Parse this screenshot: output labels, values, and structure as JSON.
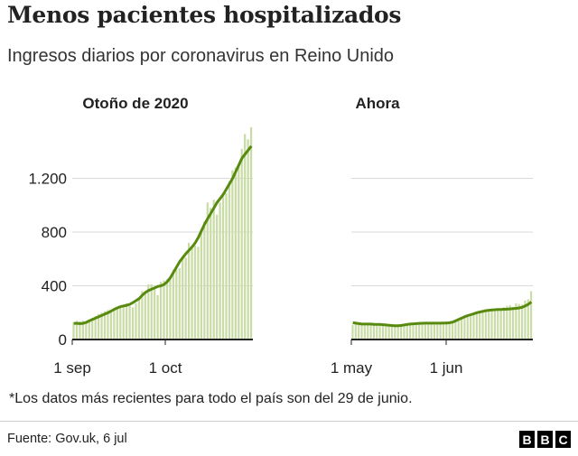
{
  "title": "Menos pacientes hospitalizados",
  "subtitle": "Ingresos diarios por coronavirus en Reino Unido",
  "footnote": "*Los datos más recientes para todo el país son del 29 de junio.",
  "source": "Fuente: Gov.uk, 6 jul",
  "logo": "BBC",
  "colors": {
    "bar": "#c9dca6",
    "line": "#588a10",
    "grid": "#d9d9d9",
    "axis": "#222222"
  },
  "chart_data": [
    {
      "type": "bar",
      "title": "Otoño de 2020",
      "x_start": "1 sep",
      "x_end": "28 oct",
      "xtick_labels": [
        "1 sep",
        "1 oct"
      ],
      "ytick_labels": [
        "0",
        "400",
        "800",
        "1.200"
      ],
      "yticks": [
        0,
        400,
        800,
        1200
      ],
      "ylim": [
        0,
        1600
      ],
      "grid": true,
      "values": [
        130,
        140,
        135,
        140,
        130,
        150,
        160,
        175,
        190,
        200,
        210,
        220,
        200,
        230,
        240,
        250,
        260,
        270,
        250,
        240,
        270,
        300,
        360,
        340,
        410,
        410,
        380,
        330,
        430,
        440,
        450,
        460,
        520,
        520,
        530,
        620,
        610,
        720,
        680,
        700,
        690,
        820,
        880,
        1020,
        980,
        1040,
        930,
        1020,
        1090,
        1090,
        1180,
        1260,
        1280,
        1300,
        1420,
        1530,
        1490,
        1580
      ],
      "average": [
        120,
        120,
        118,
        120,
        128,
        140,
        150,
        160,
        170,
        180,
        190,
        200,
        212,
        225,
        235,
        245,
        250,
        255,
        262,
        275,
        290,
        305,
        330,
        350,
        365,
        375,
        385,
        395,
        400,
        410,
        430,
        460,
        500,
        540,
        580,
        610,
        640,
        665,
        690,
        720,
        760,
        810,
        860,
        900,
        940,
        980,
        1020,
        1050,
        1080,
        1120,
        1160,
        1200,
        1250,
        1300,
        1350,
        1380,
        1410,
        1440
      ]
    },
    {
      "type": "bar",
      "title": "Ahora",
      "x_start": "1 may",
      "x_end": "29 jun",
      "xtick_labels": [
        "1 may",
        "1 jun"
      ],
      "yticks": [
        0,
        400,
        800,
        1200
      ],
      "ylim": [
        0,
        1600
      ],
      "grid": true,
      "values": [
        110,
        120,
        115,
        110,
        105,
        115,
        120,
        110,
        105,
        110,
        105,
        110,
        100,
        95,
        100,
        105,
        110,
        115,
        110,
        105,
        115,
        120,
        125,
        120,
        125,
        120,
        115,
        125,
        130,
        120,
        125,
        135,
        120,
        125,
        130,
        140,
        160,
        170,
        180,
        190,
        185,
        195,
        210,
        220,
        215,
        220,
        225,
        230,
        220,
        230,
        240,
        250,
        255,
        240,
        270,
        265,
        260,
        290,
        300,
        360
      ],
      "average": [
        125,
        122,
        118,
        115,
        115,
        115,
        115,
        113,
        112,
        112,
        110,
        108,
        106,
        104,
        103,
        103,
        105,
        108,
        112,
        115,
        117,
        118,
        120,
        121,
        122,
        122,
        122,
        122,
        122,
        122,
        123,
        123,
        125,
        130,
        140,
        150,
        160,
        170,
        178,
        185,
        192,
        200,
        205,
        210,
        215,
        218,
        220,
        222,
        223,
        224,
        225,
        226,
        228,
        230,
        232,
        235,
        240,
        250,
        262,
        280
      ]
    }
  ]
}
